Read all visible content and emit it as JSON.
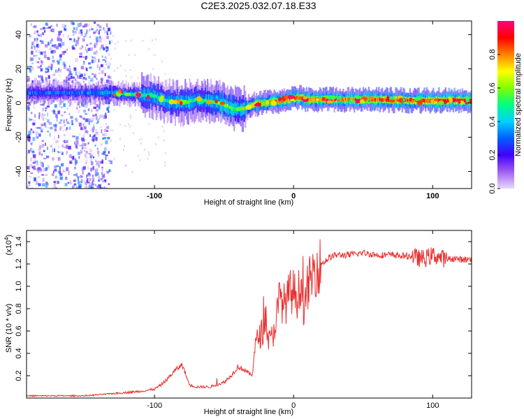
{
  "title": "C2E3.2025.032.07.18.E33",
  "chart_data": [
    {
      "type": "heatmap",
      "xlabel": "Height of straight line (km)",
      "ylabel": "Frequency (Hz)",
      "xlim": [
        -192,
        128
      ],
      "ylim": [
        -50,
        48
      ],
      "xticks": [
        -100,
        0,
        100
      ],
      "xtick_labels": [
        "-100",
        "0",
        "100"
      ],
      "yticks": [
        -40,
        -20,
        0,
        20,
        40
      ],
      "ytick_labels": [
        "-40",
        "-20",
        "0",
        "20",
        "40"
      ],
      "colorbar": {
        "label": "Normalized spectral amplitude",
        "range": [
          0,
          1
        ],
        "ticks": [
          0.0,
          0.2,
          0.4,
          0.6,
          0.8
        ],
        "tick_labels": [
          "0.0",
          "0.2",
          "0.4",
          "0.6",
          "0.8"
        ],
        "colors": [
          "#e8d8ff",
          "#a060f0",
          "#4000ff",
          "#0060ff",
          "#00d0ff",
          "#00ff80",
          "#80ff00",
          "#ffff00",
          "#ff8000",
          "#ff0000",
          "#ff0080"
        ]
      },
      "ridge": {
        "x": [
          -192,
          -150,
          -130,
          -115,
          -100,
          -90,
          -80,
          -70,
          -60,
          -50,
          -45,
          -40,
          -35,
          -30,
          -25,
          -20,
          -15,
          -10,
          -5,
          0,
          5,
          10,
          20,
          40,
          60,
          80,
          100,
          128
        ],
        "frequency": [
          6,
          6,
          6,
          5,
          4,
          1,
          0,
          2,
          1,
          -1,
          -3,
          -4,
          -3,
          -1,
          0,
          0,
          1,
          1,
          2,
          3,
          3,
          2,
          2,
          2,
          2,
          1.5,
          1.5,
          1.5
        ],
        "amplitude": [
          0.3,
          0.3,
          0.4,
          0.45,
          0.5,
          0.5,
          0.55,
          0.5,
          0.55,
          0.6,
          0.6,
          0.55,
          0.6,
          0.7,
          0.75,
          0.75,
          0.8,
          0.8,
          0.8,
          0.85,
          0.85,
          0.8,
          0.8,
          0.8,
          0.85,
          0.85,
          0.9,
          0.9
        ]
      },
      "noise_region": {
        "x": [
          -192,
          -132
        ],
        "frequency": [
          -50,
          48
        ]
      },
      "grid": false
    },
    {
      "type": "line",
      "xlabel": "Height of straight line (km)",
      "ylabel": "SNR (10 * v/v)",
      "y_multiplier": "(x10",
      "y_multiplier_exponent": "4",
      "y_multiplier_close": ")",
      "xlim": [
        -192,
        128
      ],
      "ylim": [
        0,
        1.5
      ],
      "xticks": [
        -100,
        0,
        100
      ],
      "xtick_labels": [
        "-100",
        "0",
        "100"
      ],
      "yticks": [
        0.2,
        0.4,
        0.6,
        0.8,
        1.0,
        1.2,
        1.4
      ],
      "ytick_labels": [
        "0.2",
        "0.4",
        "0.6",
        "0.8",
        "1.0",
        "1.2",
        "1.4"
      ],
      "color": "#e83030",
      "series": [
        {
          "x": [
            -192,
            -170,
            -150,
            -140,
            -130,
            -120,
            -110,
            -100,
            -95,
            -90,
            -85,
            -80,
            -75,
            -70,
            -60,
            -50,
            -45,
            -40,
            -35,
            -30,
            -28,
            -25,
            -22,
            -20,
            -18,
            -15,
            -12,
            -10,
            -8,
            -5,
            -3,
            0,
            3,
            5,
            8,
            10,
            12,
            15,
            20,
            25,
            30,
            40,
            50,
            60,
            70,
            80,
            85,
            90,
            95,
            100,
            105,
            110,
            115,
            120,
            128
          ],
          "y": [
            0.02,
            0.02,
            0.02,
            0.03,
            0.04,
            0.05,
            0.06,
            0.08,
            0.12,
            0.18,
            0.25,
            0.3,
            0.12,
            0.1,
            0.1,
            0.14,
            0.2,
            0.28,
            0.25,
            0.2,
            0.45,
            0.55,
            0.6,
            0.75,
            0.5,
            0.55,
            0.75,
            0.9,
            0.85,
            0.85,
            0.95,
            0.95,
            0.9,
            1.05,
            0.75,
            1.0,
            1.05,
            1.15,
            1.2,
            1.25,
            1.28,
            1.28,
            1.3,
            1.28,
            1.28,
            1.27,
            1.27,
            1.25,
            1.25,
            1.28,
            1.26,
            1.24,
            1.25,
            1.24,
            1.24
          ]
        }
      ],
      "grid": false
    }
  ]
}
